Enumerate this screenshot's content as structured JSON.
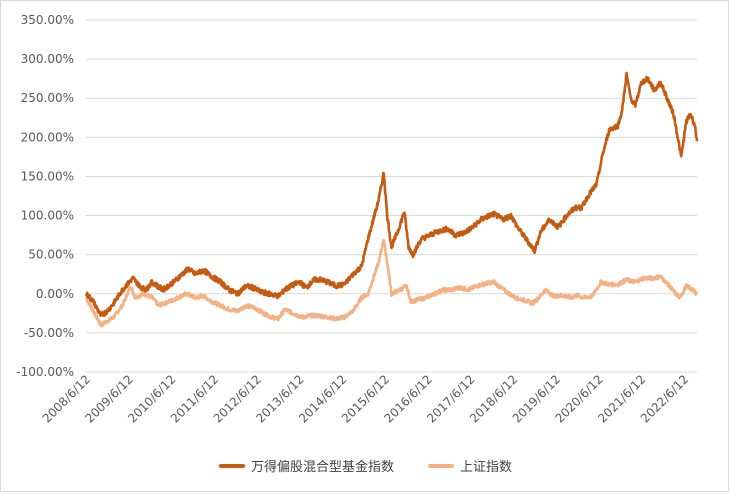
{
  "chart_data": {
    "type": "line",
    "title": "",
    "xlabel": "",
    "ylabel": "",
    "ylim": [
      -100,
      350
    ],
    "y_ticks": [
      "-100.00%",
      "-50.00%",
      "0.00%",
      "50.00%",
      "100.00%",
      "150.00%",
      "200.00%",
      "250.00%",
      "300.00%",
      "350.00%"
    ],
    "x_ticks": [
      "2008/6/12",
      "2009/6/12",
      "2010/6/12",
      "2011/6/12",
      "2012/6/12",
      "2013/6/12",
      "2014/6/12",
      "2015/6/12",
      "2016/6/12",
      "2017/6/12",
      "2018/6/12",
      "2019/6/12",
      "2020/6/12",
      "2021/6/12",
      "2022/6/12"
    ],
    "x_unit": "year",
    "xlim": [
      2008.45,
      2022.75
    ],
    "grid": "horizontal",
    "legend_position": "bottom",
    "series": [
      {
        "name": "万得偏股混合型基金指数",
        "color": "#C55A11",
        "points": [
          [
            2008.45,
            0
          ],
          [
            2008.6,
            -8
          ],
          [
            2008.8,
            -28
          ],
          [
            2008.95,
            -22
          ],
          [
            2009.1,
            -12
          ],
          [
            2009.3,
            5
          ],
          [
            2009.55,
            20
          ],
          [
            2009.7,
            10
          ],
          [
            2009.85,
            5
          ],
          [
            2010.0,
            15
          ],
          [
            2010.25,
            5
          ],
          [
            2010.5,
            15
          ],
          [
            2010.7,
            25
          ],
          [
            2010.85,
            32
          ],
          [
            2011.0,
            25
          ],
          [
            2011.2,
            30
          ],
          [
            2011.4,
            22
          ],
          [
            2011.6,
            15
          ],
          [
            2011.8,
            5
          ],
          [
            2012.0,
            0
          ],
          [
            2012.2,
            10
          ],
          [
            2012.35,
            8
          ],
          [
            2012.55,
            2
          ],
          [
            2012.75,
            0
          ],
          [
            2012.95,
            -3
          ],
          [
            2013.1,
            5
          ],
          [
            2013.25,
            10
          ],
          [
            2013.45,
            15
          ],
          [
            2013.6,
            8
          ],
          [
            2013.8,
            18
          ],
          [
            2013.95,
            18
          ],
          [
            2014.1,
            15
          ],
          [
            2014.3,
            10
          ],
          [
            2014.5,
            12
          ],
          [
            2014.7,
            25
          ],
          [
            2014.9,
            35
          ],
          [
            2015.05,
            70
          ],
          [
            2015.3,
            120
          ],
          [
            2015.42,
            155
          ],
          [
            2015.5,
            100
          ],
          [
            2015.6,
            60
          ],
          [
            2015.75,
            80
          ],
          [
            2015.9,
            105
          ],
          [
            2016.0,
            60
          ],
          [
            2016.1,
            50
          ],
          [
            2016.3,
            70
          ],
          [
            2016.5,
            75
          ],
          [
            2016.7,
            80
          ],
          [
            2016.9,
            83
          ],
          [
            2017.1,
            75
          ],
          [
            2017.3,
            78
          ],
          [
            2017.5,
            85
          ],
          [
            2017.7,
            95
          ],
          [
            2017.9,
            100
          ],
          [
            2018.0,
            102
          ],
          [
            2018.2,
            95
          ],
          [
            2018.4,
            100
          ],
          [
            2018.55,
            85
          ],
          [
            2018.75,
            70
          ],
          [
            2018.95,
            55
          ],
          [
            2019.1,
            80
          ],
          [
            2019.3,
            95
          ],
          [
            2019.5,
            85
          ],
          [
            2019.7,
            100
          ],
          [
            2019.9,
            110
          ],
          [
            2020.05,
            110
          ],
          [
            2020.2,
            125
          ],
          [
            2020.4,
            140
          ],
          [
            2020.55,
            180
          ],
          [
            2020.7,
            210
          ],
          [
            2020.9,
            215
          ],
          [
            2021.0,
            235
          ],
          [
            2021.1,
            280
          ],
          [
            2021.2,
            250
          ],
          [
            2021.3,
            240
          ],
          [
            2021.45,
            270
          ],
          [
            2021.6,
            275
          ],
          [
            2021.75,
            260
          ],
          [
            2021.9,
            270
          ],
          [
            2022.05,
            250
          ],
          [
            2022.2,
            230
          ],
          [
            2022.3,
            200
          ],
          [
            2022.38,
            175
          ],
          [
            2022.5,
            220
          ],
          [
            2022.6,
            230
          ],
          [
            2022.7,
            215
          ],
          [
            2022.75,
            195
          ]
        ]
      },
      {
        "name": "上证指数",
        "color": "#F4B183",
        "points": [
          [
            2008.45,
            -5
          ],
          [
            2008.6,
            -20
          ],
          [
            2008.8,
            -40
          ],
          [
            2008.95,
            -35
          ],
          [
            2009.1,
            -30
          ],
          [
            2009.3,
            -15
          ],
          [
            2009.5,
            10
          ],
          [
            2009.6,
            -5
          ],
          [
            2009.8,
            0
          ],
          [
            2010.0,
            -5
          ],
          [
            2010.15,
            -15
          ],
          [
            2010.4,
            -10
          ],
          [
            2010.6,
            -5
          ],
          [
            2010.8,
            0
          ],
          [
            2011.0,
            -5
          ],
          [
            2011.2,
            -3
          ],
          [
            2011.4,
            -10
          ],
          [
            2011.6,
            -15
          ],
          [
            2011.8,
            -20
          ],
          [
            2012.0,
            -22
          ],
          [
            2012.2,
            -15
          ],
          [
            2012.4,
            -18
          ],
          [
            2012.6,
            -25
          ],
          [
            2012.8,
            -30
          ],
          [
            2012.95,
            -32
          ],
          [
            2013.1,
            -20
          ],
          [
            2013.3,
            -25
          ],
          [
            2013.5,
            -30
          ],
          [
            2013.7,
            -28
          ],
          [
            2013.9,
            -28
          ],
          [
            2014.1,
            -30
          ],
          [
            2014.3,
            -32
          ],
          [
            2014.5,
            -30
          ],
          [
            2014.7,
            -22
          ],
          [
            2014.9,
            -5
          ],
          [
            2015.05,
            0
          ],
          [
            2015.3,
            40
          ],
          [
            2015.42,
            70
          ],
          [
            2015.5,
            40
          ],
          [
            2015.6,
            0
          ],
          [
            2015.8,
            5
          ],
          [
            2015.95,
            10
          ],
          [
            2016.05,
            -10
          ],
          [
            2016.2,
            -8
          ],
          [
            2016.4,
            -5
          ],
          [
            2016.6,
            0
          ],
          [
            2016.8,
            5
          ],
          [
            2017.0,
            5
          ],
          [
            2017.2,
            8
          ],
          [
            2017.4,
            5
          ],
          [
            2017.6,
            10
          ],
          [
            2017.8,
            13
          ],
          [
            2018.0,
            15
          ],
          [
            2018.15,
            8
          ],
          [
            2018.3,
            2
          ],
          [
            2018.5,
            -5
          ],
          [
            2018.7,
            -8
          ],
          [
            2018.9,
            -12
          ],
          [
            2019.05,
            -5
          ],
          [
            2019.2,
            5
          ],
          [
            2019.4,
            -3
          ],
          [
            2019.6,
            -2
          ],
          [
            2019.8,
            -5
          ],
          [
            2019.95,
            -2
          ],
          [
            2020.1,
            -5
          ],
          [
            2020.3,
            -3
          ],
          [
            2020.5,
            15
          ],
          [
            2020.7,
            12
          ],
          [
            2020.9,
            12
          ],
          [
            2021.1,
            18
          ],
          [
            2021.3,
            15
          ],
          [
            2021.5,
            20
          ],
          [
            2021.7,
            20
          ],
          [
            2021.9,
            22
          ],
          [
            2022.1,
            10
          ],
          [
            2022.25,
            0
          ],
          [
            2022.35,
            -5
          ],
          [
            2022.5,
            10
          ],
          [
            2022.65,
            5
          ],
          [
            2022.75,
            0
          ]
        ]
      }
    ]
  }
}
